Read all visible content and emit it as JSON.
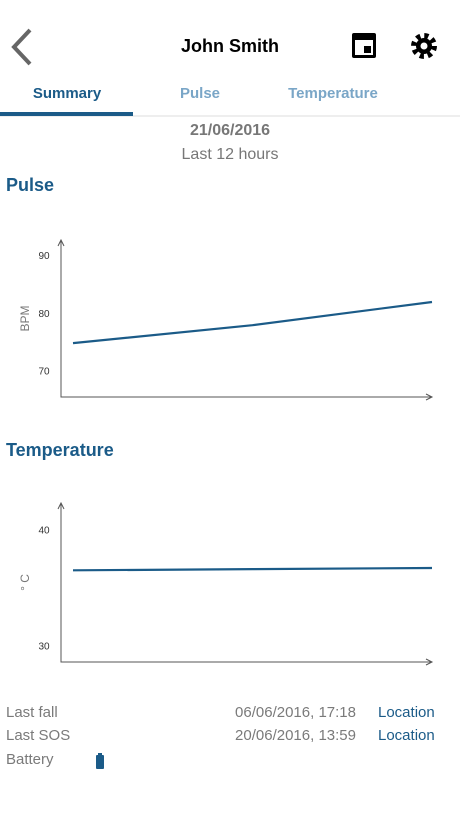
{
  "header": {
    "title": "John Smith"
  },
  "tabs": [
    "Summary",
    "Pulse",
    "Temperature"
  ],
  "date": "21/06/2016",
  "period": "Last 12 hours",
  "chart_data": [
    {
      "type": "line",
      "title": "Pulse",
      "y_label": "BPM",
      "values": [
        75,
        78.1,
        82.1
      ],
      "color": "#1b5b88",
      "ylim": [
        65.7,
        92.8
      ],
      "yticks": [
        70,
        80,
        90
      ]
    },
    {
      "type": "line",
      "title": "Temperature",
      "y_label": "° C",
      "values": [
        36.6,
        36.7,
        36.8
      ],
      "color": "#1b5b88",
      "ylim": [
        28.7,
        42.4
      ],
      "yticks": [
        30,
        40
      ]
    }
  ],
  "info": [
    {
      "label": "Last fall",
      "time": "06/06/2016, 17:18",
      "link": "Location"
    },
    {
      "label": "Last SOS",
      "time": "20/06/2016, 13:59",
      "link": "Location"
    },
    {
      "label": "Battery"
    }
  ]
}
